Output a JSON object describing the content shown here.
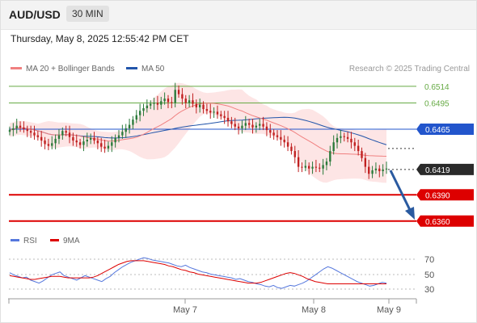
{
  "header": {
    "pair": "AUD/USD",
    "timeframe": "30 MIN"
  },
  "timestamp": "Thursday, May 8, 2025 12:55:42 PM CET",
  "legend": {
    "ma20_label": "MA 20 + Bollinger Bands",
    "ma50_label": "MA 50",
    "credit": "Research © 2025 Trading Central",
    "rsi_label": "RSI",
    "ma9_label": "9MA"
  },
  "colors": {
    "ma20": "#f08080",
    "ma50": "#2255aa",
    "bands": "#fde0e0",
    "resistance": "#66aa44",
    "pivot": "#2255cc",
    "support": "#dd0000",
    "candle_up": "#2a7a3a",
    "candle_down": "#c02020",
    "rsi": "#5577dd",
    "ma9": "#dd0000",
    "arrow": "#2a5aa0"
  },
  "chart_data": {
    "type": "candlestick",
    "ylim": [
      0.6345,
      0.6525
    ],
    "price_levels": [
      {
        "label": "0.6514",
        "value": 0.6514,
        "kind": "resistance"
      },
      {
        "label": "0.6495",
        "value": 0.6495,
        "kind": "resistance"
      },
      {
        "label": "0.6465",
        "value": 0.6465,
        "kind": "pivot"
      },
      {
        "label": "0.6419",
        "value": 0.6419,
        "kind": "last"
      },
      {
        "label": "0.6390",
        "value": 0.639,
        "kind": "support"
      },
      {
        "label": "0.6360",
        "value": 0.636,
        "kind": "support"
      }
    ],
    "x_labels": [
      "May 7",
      "May 8",
      "May 9"
    ],
    "rsi_levels": [
      "70",
      "50",
      "30"
    ],
    "closes": [
      0.6464,
      0.6466,
      0.6469,
      0.6467,
      0.6465,
      0.6463,
      0.6461,
      0.6458,
      0.6456,
      0.6452,
      0.6448,
      0.6446,
      0.6449,
      0.6454,
      0.6458,
      0.6463,
      0.6461,
      0.6456,
      0.6452,
      0.645,
      0.6447,
      0.6451,
      0.6453,
      0.6455,
      0.6452,
      0.6449,
      0.6445,
      0.6443,
      0.6446,
      0.645,
      0.6455,
      0.6458,
      0.6462,
      0.6466,
      0.647,
      0.6476,
      0.6481,
      0.6486,
      0.6489,
      0.6492,
      0.6494,
      0.6495,
      0.6493,
      0.6497,
      0.65,
      0.6496,
      0.6495,
      0.651,
      0.6505,
      0.65,
      0.6495,
      0.6498,
      0.6494,
      0.649,
      0.6493,
      0.6488,
      0.6486,
      0.6484,
      0.6485,
      0.6482,
      0.648,
      0.6478,
      0.6474,
      0.6471,
      0.6468,
      0.6466,
      0.6469,
      0.6472,
      0.647,
      0.6467,
      0.6469,
      0.6471,
      0.6468,
      0.6464,
      0.6461,
      0.6458,
      0.6456,
      0.6453,
      0.645,
      0.6445,
      0.644,
      0.6433,
      0.6422,
      0.6421,
      0.6423,
      0.642,
      0.6422,
      0.6421,
      0.642,
      0.6424,
      0.6428,
      0.644,
      0.645,
      0.6455,
      0.6457,
      0.6456,
      0.6454,
      0.645,
      0.6446,
      0.644,
      0.6432,
      0.6422,
      0.6414,
      0.6418,
      0.642,
      0.6417,
      0.6419,
      0.642
    ],
    "rsi": [
      52,
      49,
      47,
      45,
      46,
      42,
      40,
      38,
      41,
      45,
      49,
      51,
      53,
      48,
      46,
      44,
      42,
      45,
      48,
      46,
      44,
      42,
      40,
      44,
      47,
      52,
      56,
      60,
      63,
      66,
      68,
      70,
      72,
      71,
      69,
      68,
      67,
      66,
      65,
      63,
      61,
      60,
      62,
      59,
      57,
      55,
      53,
      52,
      50,
      49,
      48,
      47,
      46,
      45,
      43,
      44,
      42,
      40,
      39,
      37,
      36,
      34,
      33,
      35,
      32,
      31,
      33,
      35,
      34,
      36,
      38,
      41,
      45,
      49,
      53,
      57,
      60,
      58,
      55,
      52,
      49,
      46,
      43,
      40,
      38,
      36,
      34,
      35,
      37,
      39,
      38
    ],
    "ma9": [
      48,
      47,
      46,
      45,
      44,
      43,
      43,
      44,
      45,
      46,
      47,
      47,
      47,
      46,
      45,
      45,
      45,
      45,
      45,
      45,
      46,
      48,
      51,
      54,
      57,
      60,
      63,
      65,
      67,
      68,
      68,
      68,
      68,
      67,
      66,
      65,
      64,
      63,
      61,
      60,
      58,
      56,
      55,
      53,
      52,
      50,
      49,
      48,
      47,
      46,
      45,
      44,
      43,
      42,
      41,
      40,
      39,
      38,
      38,
      38,
      39,
      41,
      43,
      45,
      47,
      49,
      51,
      52,
      51,
      49,
      47,
      44,
      42,
      40,
      39,
      38,
      37,
      37,
      37,
      37,
      37,
      37,
      37,
      37,
      37,
      37,
      37,
      37,
      37,
      37,
      37
    ]
  }
}
